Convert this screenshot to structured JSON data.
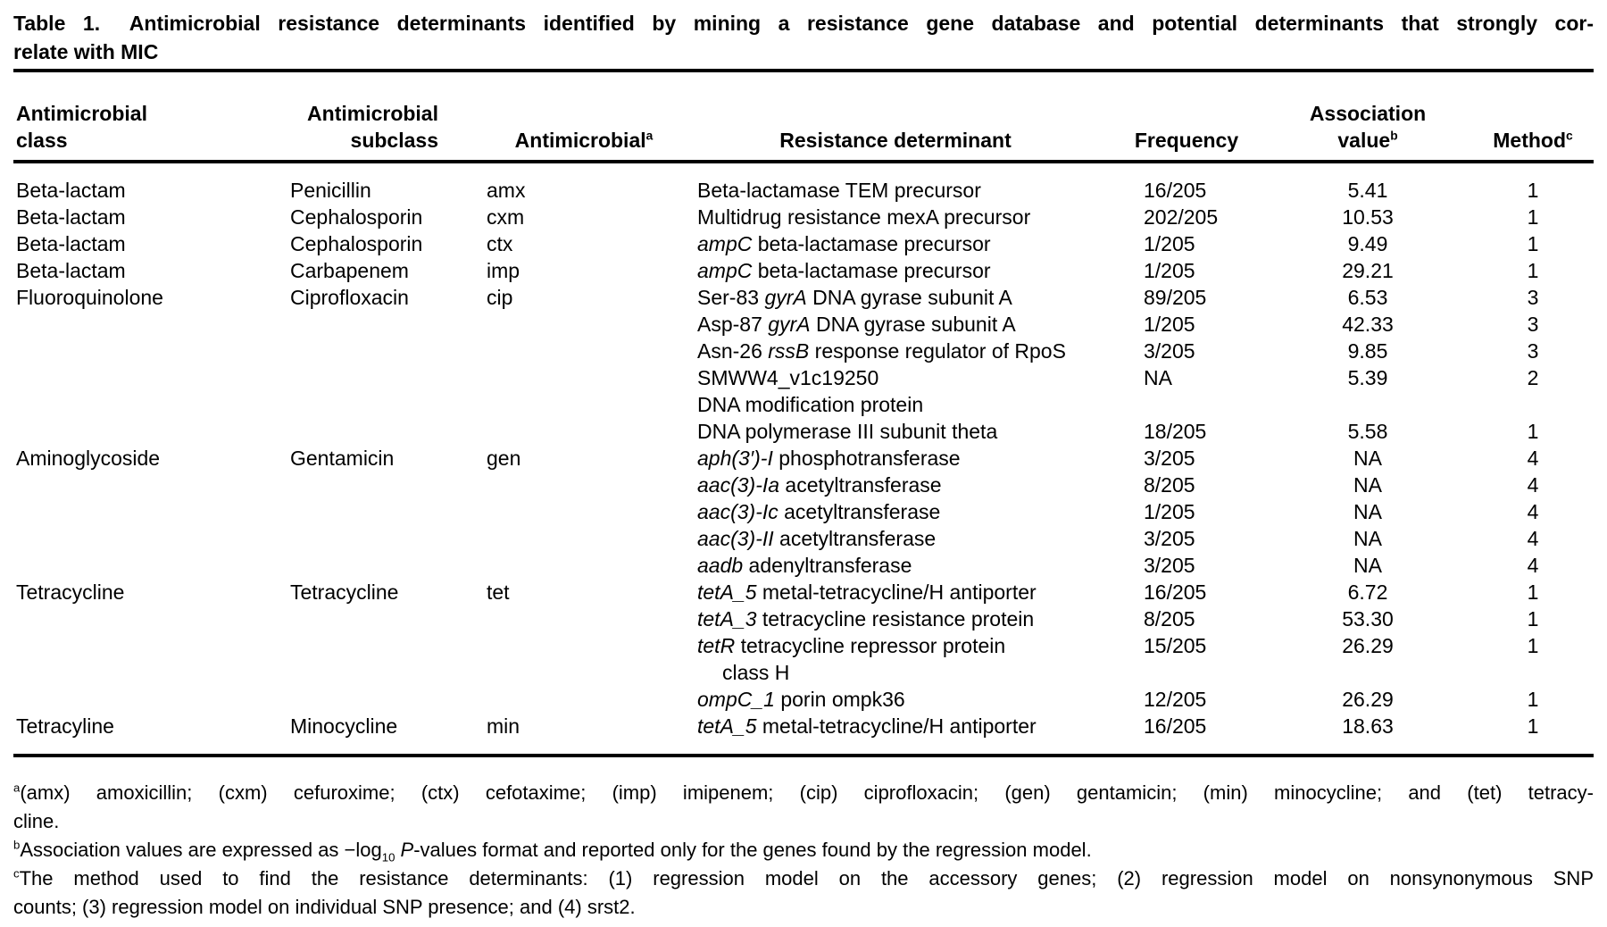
{
  "title": {
    "label": "Table 1.",
    "line1": "Antimicrobial resistance determinants identified by mining a resistance gene database and potential determinants that strongly cor-",
    "line2": "relate with MIC"
  },
  "table": {
    "columns": [
      {
        "key": "antimicrobial-class",
        "l1": "Antimicrobial",
        "l2": "class",
        "sup": ""
      },
      {
        "key": "antimicrobial-subclass",
        "l1": "Antimicrobial",
        "l2": "subclass",
        "sup": ""
      },
      {
        "key": "antimicrobial",
        "l1": "",
        "l2": "Antimicrobial",
        "sup": "a"
      },
      {
        "key": "resistance-determinant",
        "l1": "",
        "l2": "Resistance determinant",
        "sup": ""
      },
      {
        "key": "frequency",
        "l1": "",
        "l2": "Frequency",
        "sup": ""
      },
      {
        "key": "association-value",
        "l1": "Association",
        "l2": "value",
        "sup": "b"
      },
      {
        "key": "method",
        "l1": "",
        "l2": "Method",
        "sup": "c"
      }
    ],
    "rows": [
      {
        "c1": "Beta-lactam",
        "c2": "Penicillin",
        "c3": "amx",
        "pre": "Beta-lactamase TEM precursor",
        "it": "",
        "post": "",
        "freq": "16/205",
        "assoc": "5.41",
        "method": "1",
        "indent": false
      },
      {
        "c1": "Beta-lactam",
        "c2": "Cephalosporin",
        "c3": "cxm",
        "pre": "Multidrug resistance mexA precursor",
        "it": "",
        "post": "",
        "freq": "202/205",
        "assoc": "10.53",
        "method": "1",
        "indent": false
      },
      {
        "c1": "Beta-lactam",
        "c2": "Cephalosporin",
        "c3": "ctx",
        "pre": "",
        "it": "ampC",
        "post": " beta-lactamase precursor",
        "freq": "1/205",
        "assoc": "9.49",
        "method": "1",
        "indent": false
      },
      {
        "c1": "Beta-lactam",
        "c2": "Carbapenem",
        "c3": "imp",
        "pre": "",
        "it": "ampC",
        "post": " beta-lactamase precursor",
        "freq": "1/205",
        "assoc": "29.21",
        "method": "1",
        "indent": false
      },
      {
        "c1": "Fluoroquinolone",
        "c2": "Ciprofloxacin",
        "c3": "cip",
        "pre": "Ser-83 ",
        "it": "gyrA",
        "post": " DNA gyrase subunit A",
        "freq": "89/205",
        "assoc": "6.53",
        "method": "3",
        "indent": false
      },
      {
        "c1": "",
        "c2": "",
        "c3": "",
        "pre": "Asp-87 ",
        "it": "gyrA",
        "post": " DNA gyrase subunit A",
        "freq": "1/205",
        "assoc": "42.33",
        "method": "3",
        "indent": false
      },
      {
        "c1": "",
        "c2": "",
        "c3": "",
        "pre": "Asn-26 ",
        "it": "rssB",
        "post": " response regulator of RpoS",
        "freq": "3/205",
        "assoc": "9.85",
        "method": "3",
        "indent": false
      },
      {
        "c1": "",
        "c2": "",
        "c3": "",
        "pre": "SMWW4_v1c19250",
        "it": "",
        "post": "",
        "freq": "NA",
        "assoc": "5.39",
        "method": "2",
        "indent": false
      },
      {
        "c1": "",
        "c2": "",
        "c3": "",
        "pre": "DNA modification protein",
        "it": "",
        "post": "",
        "freq": "",
        "assoc": "",
        "method": "",
        "indent": false
      },
      {
        "c1": "",
        "c2": "",
        "c3": "",
        "pre": "DNA polymerase III subunit theta",
        "it": "",
        "post": "",
        "freq": "18/205",
        "assoc": "5.58",
        "method": "1",
        "indent": false
      },
      {
        "c1": "Aminoglycoside",
        "c2": "Gentamicin",
        "c3": "gen",
        "pre": "",
        "it": "aph(3′)-I",
        "post": " phosphotransferase",
        "freq": "3/205",
        "assoc": "NA",
        "method": "4",
        "indent": false
      },
      {
        "c1": "",
        "c2": "",
        "c3": "",
        "pre": "",
        "it": "aac(3)-Ia",
        "post": " acetyltransferase",
        "freq": "8/205",
        "assoc": "NA",
        "method": "4",
        "indent": false
      },
      {
        "c1": "",
        "c2": "",
        "c3": "",
        "pre": "",
        "it": "aac(3)-Ic",
        "post": " acetyltransferase",
        "freq": "1/205",
        "assoc": "NA",
        "method": "4",
        "indent": false
      },
      {
        "c1": "",
        "c2": "",
        "c3": "",
        "pre": "",
        "it": "aac(3)-II",
        "post": " acetyltransferase",
        "freq": "3/205",
        "assoc": "NA",
        "method": "4",
        "indent": false
      },
      {
        "c1": "",
        "c2": "",
        "c3": "",
        "pre": "",
        "it": "aadb",
        "post": " adenyltransferase",
        "freq": "3/205",
        "assoc": "NA",
        "method": "4",
        "indent": false
      },
      {
        "c1": "Tetracycline",
        "c2": "Tetracycline",
        "c3": "tet",
        "pre": "",
        "it": "tetA_5",
        "post": " metal-tetracycline/H antiporter",
        "freq": "16/205",
        "assoc": "6.72",
        "method": "1",
        "indent": false
      },
      {
        "c1": "",
        "c2": "",
        "c3": "",
        "pre": "",
        "it": "tetA_3",
        "post": " tetracycline resistance protein",
        "freq": "8/205",
        "assoc": "53.30",
        "method": "1",
        "indent": false
      },
      {
        "c1": "",
        "c2": "",
        "c3": "",
        "pre": "",
        "it": "tetR",
        "post": " tetracycline repressor protein",
        "freq": "15/205",
        "assoc": "26.29",
        "method": "1",
        "indent": false
      },
      {
        "c1": "",
        "c2": "",
        "c3": "",
        "pre": "class H",
        "it": "",
        "post": "",
        "freq": "",
        "assoc": "",
        "method": "",
        "indent": true
      },
      {
        "c1": "",
        "c2": "",
        "c3": "",
        "pre": "",
        "it": "ompC_1",
        "post": " porin ompk36",
        "freq": "12/205",
        "assoc": "26.29",
        "method": "1",
        "indent": false
      },
      {
        "c1": "Tetracyline",
        "c2": "Minocycline",
        "c3": "min",
        "pre": "",
        "it": "tetA_5",
        "post": " metal-tetracycline/H antiporter",
        "freq": "16/205",
        "assoc": "18.63",
        "method": "1",
        "indent": false
      }
    ]
  },
  "footnotes": [
    {
      "id": "a",
      "lines": [
        {
          "just": true,
          "segs": [
            {
              "t": "a",
              "s": "sup"
            },
            {
              "t": "(amx) amoxicillin; (cxm) cefuroxime; (ctx) cefotaxime; (imp) imipenem; (cip) ciprofloxacin; (gen) gentamicin; (min) minocycline; and (tet) tetracy-",
              "s": ""
            }
          ]
        },
        {
          "just": false,
          "segs": [
            {
              "t": "cline.",
              "s": ""
            }
          ]
        }
      ]
    },
    {
      "id": "b",
      "lines": [
        {
          "just": false,
          "segs": [
            {
              "t": "b",
              "s": "sup"
            },
            {
              "t": "Association values are expressed as −log",
              "s": ""
            },
            {
              "t": "10",
              "s": "sub"
            },
            {
              "t": " ",
              "s": ""
            },
            {
              "t": "P",
              "s": "i"
            },
            {
              "t": "-values format and reported only for the genes found by the regression model.",
              "s": ""
            }
          ]
        }
      ]
    },
    {
      "id": "c",
      "lines": [
        {
          "just": true,
          "segs": [
            {
              "t": "c",
              "s": "sup"
            },
            {
              "t": "The method used to find the resistance determinants: (1) regression model on the accessory genes; (2) regression model on nonsynonymous SNP",
              "s": ""
            }
          ]
        },
        {
          "just": false,
          "segs": [
            {
              "t": "counts; (3) regression model on individual SNP presence; and (4) srst2.",
              "s": ""
            }
          ]
        }
      ]
    }
  ]
}
